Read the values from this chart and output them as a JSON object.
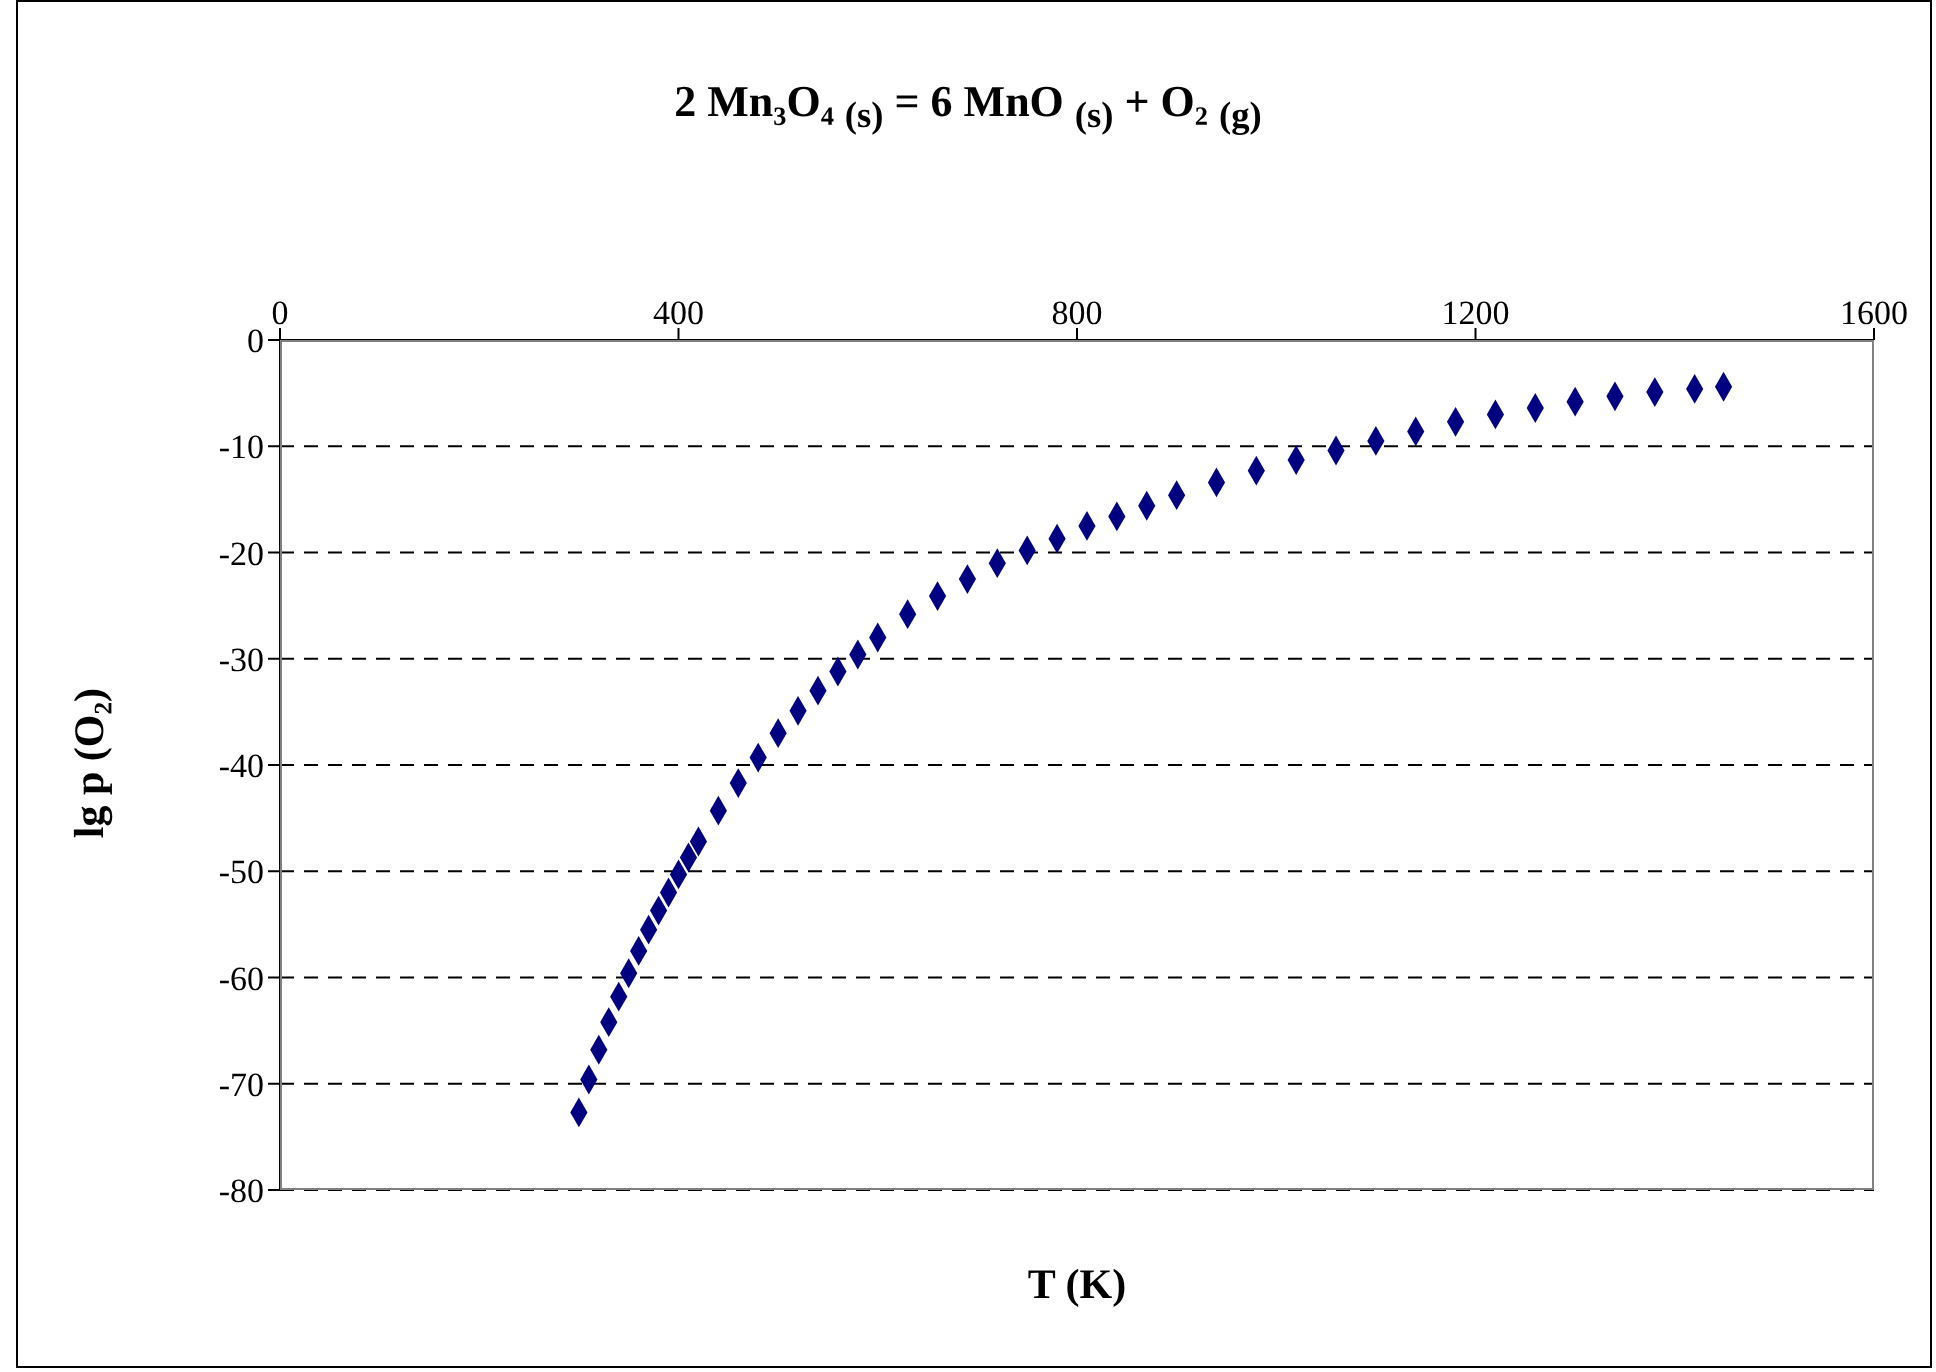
{
  "chart_data": {
    "type": "scatter",
    "title": "2 Mn₃O₄ $_{(s)}$ = 6 MnO $_{(s)}$ + O₂ $_{(g)}$",
    "xlabel": "T (K)",
    "ylabel": "lg p (O₂)",
    "xlim": [
      0,
      1600
    ],
    "xticks": [
      0,
      400,
      800,
      1200,
      1600
    ],
    "ylim": [
      -80,
      0
    ],
    "yticks": [
      -80,
      -70,
      -60,
      -50,
      -40,
      -30,
      -20,
      -10,
      0
    ],
    "grid": "y",
    "marker": "diamond",
    "legend": false,
    "series": [
      {
        "color": "#000080",
        "x": [
          300,
          310,
          320,
          330,
          340,
          350,
          360,
          370,
          380,
          390,
          400,
          410,
          420,
          440,
          460,
          480,
          500,
          520,
          540,
          560,
          580,
          600,
          630,
          660,
          690,
          720,
          750,
          780,
          810,
          840,
          870,
          900,
          940,
          980,
          1020,
          1060,
          1100,
          1140,
          1180,
          1220,
          1260,
          1300,
          1340,
          1380,
          1420,
          1449
        ],
        "values": [
          -72.7,
          -69.6,
          -66.8,
          -64.2,
          -61.8,
          -59.6,
          -57.5,
          -55.5,
          -53.7,
          -52.0,
          -50.3,
          -48.7,
          -47.2,
          -44.3,
          -41.7,
          -39.3,
          -37.0,
          -34.9,
          -33.0,
          -31.2,
          -29.6,
          -28.0,
          -25.8,
          -24.1,
          -22.5,
          -21.0,
          -19.8,
          -18.7,
          -17.5,
          -16.6,
          -15.6,
          -14.6,
          -13.4,
          -12.3,
          -11.3,
          -10.4,
          -9.5,
          -8.6,
          -7.7,
          -7.0,
          -6.4,
          -5.8,
          -5.3,
          -4.9,
          -4.6,
          -4.4
        ]
      }
    ]
  }
}
